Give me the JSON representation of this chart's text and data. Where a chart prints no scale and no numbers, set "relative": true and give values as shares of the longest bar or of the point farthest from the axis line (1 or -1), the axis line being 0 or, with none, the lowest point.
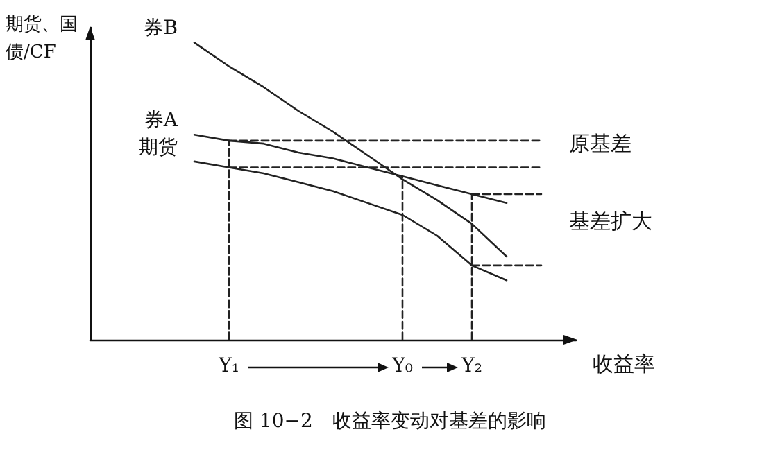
{
  "chart_data": {
    "type": "line",
    "relative": true,
    "title": "图 10−2　收益率变动对基差的影响",
    "xlabel": "收益率",
    "ylabel": "期货、国债/CF",
    "categories": [
      null,
      null,
      null,
      null,
      "Y₁",
      null,
      null,
      null,
      null,
      "Y₀",
      null,
      "Y₂",
      null,
      null,
      null
    ],
    "grid": false,
    "legend": false,
    "tick_labels": "x",
    "marker": "none",
    "line_style": "solid",
    "series": [
      {
        "name": "券B",
        "color": "#222222",
        "values": [
          null,
          null,
          null,
          1,
          0.92,
          0.85,
          0.77,
          0.7,
          0.62,
          0.54,
          0.47,
          0.39,
          0.28,
          null,
          null
        ]
      },
      {
        "name": "券A",
        "color": "#222222",
        "values": [
          null,
          null,
          null,
          0.69,
          0.67,
          0.66,
          0.63,
          0.61,
          0.58,
          0.55,
          0.52,
          0.49,
          0.46,
          null,
          null
        ]
      },
      {
        "name": "期货",
        "color": "#222222",
        "values": [
          null,
          null,
          null,
          0.6,
          0.58,
          0.56,
          0.53,
          0.5,
          0.46,
          0.42,
          0.35,
          0.25,
          0.2,
          null,
          null
        ]
      },
      {
        "color": "#222222",
        "line_style": "dashed",
        "values": [
          null,
          null,
          null,
          null,
          0.67,
          0.67,
          0.67,
          0.67,
          0.67,
          0.67,
          0.67,
          0.67,
          0.67,
          0.67,
          null
        ]
      },
      {
        "color": "#222222",
        "line_style": "dashed",
        "values": [
          null,
          null,
          null,
          null,
          0.58,
          0.58,
          0.58,
          0.58,
          0.58,
          0.58,
          0.58,
          0.58,
          0.58,
          0.58,
          null
        ]
      },
      {
        "color": "#222222",
        "line_style": "dashed",
        "values": [
          null,
          null,
          null,
          null,
          null,
          null,
          null,
          null,
          null,
          null,
          null,
          0.49,
          0.49,
          0.49,
          null
        ]
      },
      {
        "color": "#222222",
        "line_style": "dashed",
        "values": [
          null,
          null,
          null,
          null,
          null,
          null,
          null,
          null,
          null,
          null,
          null,
          0.25,
          0.25,
          0.25,
          null
        ]
      },
      {
        "color": "#222222",
        "line_style": "dashed",
        "x": [
          "Y₁",
          "Y₁"
        ],
        "values": [
          0,
          0.67
        ]
      },
      {
        "color": "#222222",
        "line_style": "dashed",
        "x": [
          "Y₀",
          "Y₀"
        ],
        "values": [
          0,
          0.55
        ]
      },
      {
        "color": "#222222",
        "line_style": "dashed",
        "x": [
          "Y₂",
          "Y₂"
        ],
        "values": [
          0,
          0.49
        ]
      }
    ],
    "annotations": [
      "原基差",
      "基差扩大"
    ]
  }
}
